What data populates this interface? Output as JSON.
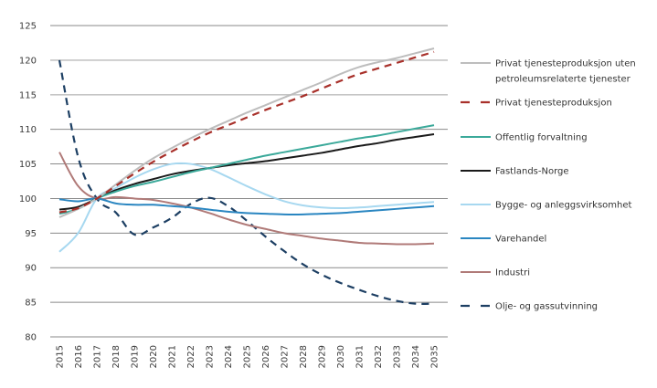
{
  "chart_data": {
    "type": "line",
    "title": "",
    "xlabel": "",
    "ylabel": "",
    "ylim": [
      80,
      125
    ],
    "yticks": [
      80,
      85,
      90,
      95,
      100,
      105,
      110,
      115,
      120,
      125
    ],
    "grid": true,
    "legend_position": "right",
    "x": [
      "2015",
      "2016",
      "2017",
      "2018",
      "2019",
      "2020",
      "2021",
      "2022",
      "2023",
      "2024",
      "2025",
      "2026",
      "2027",
      "2028",
      "2029",
      "2030",
      "2031",
      "2032",
      "2033",
      "2034",
      "2035"
    ],
    "series": [
      {
        "name": "Privat tjenesteproduksjon uten petroleumsrelaterte tjenester",
        "legend_lines": [
          "Privat tjenesteproduksjon uten",
          "petroleumsrelaterte tjenester"
        ],
        "color": "#bdbdbd",
        "style": "solid",
        "values": [
          97.3,
          98.5,
          100,
          102,
          104,
          105.8,
          107.3,
          108.7,
          110,
          111.2,
          112.4,
          113.5,
          114.6,
          115.7,
          116.8,
          118,
          119,
          119.7,
          120.3,
          121,
          121.7
        ]
      },
      {
        "name": "Privat tjenesteproduksjon",
        "legend_lines": [
          "Privat tjenesteproduksjon"
        ],
        "color": "#a8302a",
        "style": "dashed",
        "values": [
          98,
          98.6,
          100,
          101.8,
          103.6,
          105.3,
          106.8,
          108.2,
          109.5,
          110.6,
          111.7,
          112.8,
          113.8,
          114.8,
          115.9,
          117,
          118,
          118.8,
          119.6,
          120.4,
          121.2
        ]
      },
      {
        "name": "Offentlig forvaltning",
        "legend_lines": [
          "Offentlig forvaltning"
        ],
        "color": "#3ba99a",
        "style": "solid",
        "values": [
          97.8,
          98.5,
          100,
          101,
          101.8,
          102.4,
          103.1,
          103.8,
          104.4,
          105,
          105.6,
          106.2,
          106.7,
          107.2,
          107.7,
          108.2,
          108.7,
          109.1,
          109.6,
          110.1,
          110.6
        ]
      },
      {
        "name": "Fastlands-Norge",
        "legend_lines": [
          "Fastlands-Norge"
        ],
        "color": "#1a1a1a",
        "style": "solid",
        "values": [
          98.4,
          98.8,
          100,
          101.2,
          102.1,
          102.8,
          103.5,
          104,
          104.4,
          104.8,
          105.1,
          105.4,
          105.8,
          106.2,
          106.6,
          107.1,
          107.6,
          108,
          108.5,
          108.9,
          109.3
        ]
      },
      {
        "name": "Bygge- og anleggsvirksomhet",
        "legend_lines": [
          "Bygge- og anleggsvirksomhet"
        ],
        "color": "#a7d8f0",
        "style": "solid",
        "values": [
          92.3,
          95,
          100,
          101.5,
          103,
          104.2,
          105,
          105,
          104.3,
          103.1,
          101.8,
          100.6,
          99.6,
          99,
          98.7,
          98.6,
          98.7,
          98.9,
          99.1,
          99.3,
          99.5
        ]
      },
      {
        "name": "Varehandel",
        "legend_lines": [
          "Varehandel"
        ],
        "color": "#2a86c1",
        "style": "solid",
        "values": [
          99.9,
          99.6,
          100,
          99.3,
          99.1,
          99.1,
          98.9,
          98.7,
          98.4,
          98.1,
          97.9,
          97.8,
          97.7,
          97.7,
          97.8,
          97.9,
          98.1,
          98.3,
          98.5,
          98.7,
          98.9
        ]
      },
      {
        "name": "Industri",
        "legend_lines": [
          "Industri"
        ],
        "color": "#b07a78",
        "style": "solid",
        "values": [
          106.7,
          101.8,
          100,
          100.2,
          100,
          99.8,
          99.3,
          98.7,
          97.9,
          97,
          96.2,
          95.6,
          95,
          94.6,
          94.2,
          93.9,
          93.6,
          93.5,
          93.4,
          93.4,
          93.5
        ]
      },
      {
        "name": "Olje- og gassutvinning",
        "legend_lines": [
          "Olje- og gassutvinning"
        ],
        "color": "#1d3f63",
        "style": "dashed",
        "values": [
          120,
          106,
          100,
          98,
          94.8,
          95.8,
          97.2,
          99.2,
          100.1,
          98.9,
          96.8,
          94.5,
          92.4,
          90.5,
          89,
          87.8,
          86.8,
          85.9,
          85.2,
          84.8,
          84.8
        ]
      }
    ]
  }
}
